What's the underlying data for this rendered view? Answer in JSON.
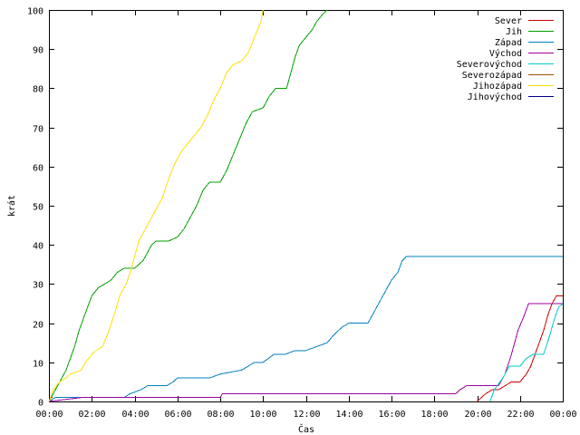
{
  "chart_data": {
    "type": "line",
    "title": "",
    "xlabel": "Čas",
    "ylabel": "krát",
    "xlim": [
      0,
      24
    ],
    "ylim": [
      0,
      100
    ],
    "x_tick_labels": [
      "00:00",
      "02:00",
      "04:00",
      "06:00",
      "08:00",
      "10:00",
      "12:00",
      "14:00",
      "16:00",
      "18:00",
      "20:00",
      "22:00",
      "00:00"
    ],
    "y_ticks": [
      0,
      10,
      20,
      30,
      40,
      50,
      60,
      70,
      80,
      90,
      100
    ],
    "grid": false,
    "legend_position": "top-right",
    "series": [
      {
        "name": "Sever",
        "color": "#cc0000",
        "points": [
          [
            20.0,
            0
          ],
          [
            20.2,
            1
          ],
          [
            20.4,
            2
          ],
          [
            20.7,
            3
          ],
          [
            21.0,
            3
          ],
          [
            21.3,
            4
          ],
          [
            21.6,
            5
          ],
          [
            22.0,
            5
          ],
          [
            22.3,
            7
          ],
          [
            22.5,
            9
          ],
          [
            22.7,
            12
          ],
          [
            22.9,
            15
          ],
          [
            23.1,
            18
          ],
          [
            23.3,
            22
          ],
          [
            23.5,
            25
          ],
          [
            23.7,
            27
          ],
          [
            24.0,
            27
          ]
        ]
      },
      {
        "name": "Jih",
        "color": "#00a000",
        "points": [
          [
            0.0,
            0
          ],
          [
            0.2,
            2
          ],
          [
            0.4,
            4
          ],
          [
            0.6,
            6
          ],
          [
            0.8,
            8
          ],
          [
            1.0,
            11
          ],
          [
            1.2,
            14
          ],
          [
            1.4,
            18
          ],
          [
            1.6,
            21
          ],
          [
            1.8,
            24
          ],
          [
            2.0,
            27
          ],
          [
            2.3,
            29
          ],
          [
            2.6,
            30
          ],
          [
            2.9,
            31
          ],
          [
            3.2,
            33
          ],
          [
            3.5,
            34
          ],
          [
            4.0,
            34
          ],
          [
            4.4,
            36
          ],
          [
            4.8,
            40
          ],
          [
            5.0,
            41
          ],
          [
            5.6,
            41
          ],
          [
            6.0,
            42
          ],
          [
            6.3,
            44
          ],
          [
            6.6,
            47
          ],
          [
            6.9,
            50
          ],
          [
            7.2,
            54
          ],
          [
            7.5,
            56
          ],
          [
            8.0,
            56
          ],
          [
            8.3,
            59
          ],
          [
            8.6,
            63
          ],
          [
            8.9,
            67
          ],
          [
            9.2,
            71
          ],
          [
            9.5,
            74
          ],
          [
            10.0,
            75
          ],
          [
            10.3,
            78
          ],
          [
            10.6,
            80
          ],
          [
            11.1,
            80
          ],
          [
            11.3,
            84
          ],
          [
            11.5,
            88
          ],
          [
            11.7,
            91
          ],
          [
            12.0,
            93
          ],
          [
            12.3,
            95
          ],
          [
            12.5,
            97
          ],
          [
            12.8,
            99
          ],
          [
            13.0,
            100
          ]
        ]
      },
      {
        "name": "Západ",
        "color": "#0080c0",
        "points": [
          [
            0.0,
            0
          ],
          [
            0.3,
            1
          ],
          [
            3.5,
            1
          ],
          [
            3.8,
            2
          ],
          [
            4.3,
            3
          ],
          [
            4.6,
            4
          ],
          [
            5.5,
            4
          ],
          [
            5.8,
            5
          ],
          [
            6.0,
            6
          ],
          [
            7.5,
            6
          ],
          [
            8.0,
            7
          ],
          [
            9.0,
            8
          ],
          [
            9.3,
            9
          ],
          [
            9.6,
            10
          ],
          [
            10.0,
            10
          ],
          [
            10.5,
            12
          ],
          [
            11.0,
            12
          ],
          [
            11.5,
            13
          ],
          [
            12.0,
            13
          ],
          [
            12.5,
            14
          ],
          [
            13.0,
            15
          ],
          [
            13.3,
            17
          ],
          [
            13.7,
            19
          ],
          [
            14.0,
            20
          ],
          [
            14.9,
            20
          ],
          [
            15.1,
            22
          ],
          [
            15.4,
            25
          ],
          [
            15.8,
            29
          ],
          [
            16.0,
            31
          ],
          [
            16.3,
            33
          ],
          [
            16.5,
            36
          ],
          [
            16.7,
            37
          ],
          [
            24.0,
            37
          ]
        ]
      },
      {
        "name": "Východ",
        "color": "#a000a0",
        "points": [
          [
            0.0,
            0
          ],
          [
            1.5,
            1
          ],
          [
            8.0,
            1
          ],
          [
            8.1,
            2
          ],
          [
            19.0,
            2
          ],
          [
            19.2,
            3
          ],
          [
            19.5,
            4
          ],
          [
            21.0,
            4
          ],
          [
            21.3,
            7
          ],
          [
            21.6,
            12
          ],
          [
            21.9,
            18
          ],
          [
            22.2,
            22
          ],
          [
            22.4,
            25
          ],
          [
            24.0,
            25
          ]
        ]
      },
      {
        "name": "Severovýchod",
        "color": "#00c8c8",
        "points": [
          [
            20.6,
            0
          ],
          [
            20.8,
            3
          ],
          [
            21.2,
            6
          ],
          [
            21.5,
            9
          ],
          [
            22.0,
            9
          ],
          [
            22.3,
            11
          ],
          [
            22.6,
            12
          ],
          [
            23.1,
            12
          ],
          [
            23.4,
            17
          ],
          [
            23.6,
            21
          ],
          [
            23.8,
            24
          ],
          [
            24.0,
            25
          ]
        ]
      },
      {
        "name": "Severozápad",
        "color": "#a05000",
        "points": [
          [
            0.0,
            0
          ],
          [
            0.1,
            1
          ],
          [
            0.2,
            1
          ]
        ]
      },
      {
        "name": "Jihozápad",
        "color": "#ffe000",
        "points": [
          [
            0.0,
            0
          ],
          [
            0.2,
            3
          ],
          [
            0.5,
            5
          ],
          [
            0.8,
            6
          ],
          [
            1.0,
            7
          ],
          [
            1.5,
            8
          ],
          [
            1.7,
            10
          ],
          [
            2.0,
            12
          ],
          [
            2.2,
            13
          ],
          [
            2.5,
            14
          ],
          [
            2.8,
            18
          ],
          [
            3.1,
            23
          ],
          [
            3.3,
            27
          ],
          [
            3.6,
            30
          ],
          [
            3.8,
            33
          ],
          [
            4.0,
            37
          ],
          [
            4.2,
            41
          ],
          [
            4.5,
            44
          ],
          [
            4.8,
            47
          ],
          [
            5.0,
            49
          ],
          [
            5.3,
            52
          ],
          [
            5.6,
            57
          ],
          [
            5.9,
            61
          ],
          [
            6.2,
            64
          ],
          [
            6.5,
            66
          ],
          [
            6.8,
            68
          ],
          [
            7.1,
            70
          ],
          [
            7.4,
            73
          ],
          [
            7.7,
            77
          ],
          [
            8.0,
            80
          ],
          [
            8.3,
            84
          ],
          [
            8.6,
            86
          ],
          [
            9.0,
            87
          ],
          [
            9.3,
            89
          ],
          [
            9.6,
            93
          ],
          [
            9.9,
            97
          ],
          [
            10.0,
            100
          ]
        ]
      },
      {
        "name": "Jihovýchod",
        "color": "#000080",
        "points": []
      }
    ]
  }
}
